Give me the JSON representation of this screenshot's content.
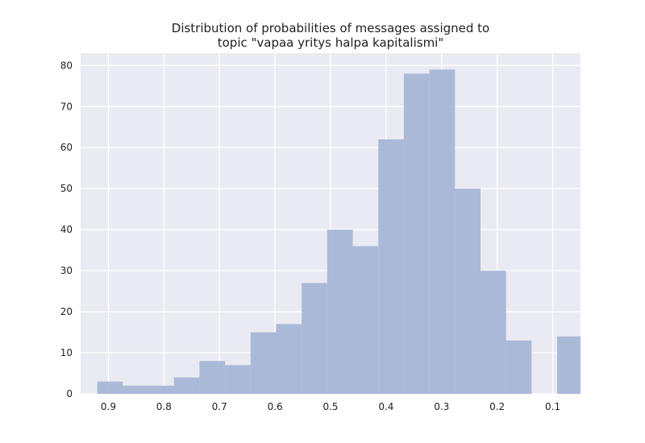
{
  "chart_data": {
    "type": "bar",
    "title_lines": [
      "Distribution of probabilities of messages assigned to",
      "topic \"vapaa yritys halpa kapitalismi\""
    ],
    "xlabel": "",
    "ylabel": "",
    "x_axis_reversed": true,
    "xlim": [
      0.95,
      0.05
    ],
    "ylim": [
      0,
      83
    ],
    "x_ticks": [
      0.9,
      0.8,
      0.7,
      0.6,
      0.5,
      0.4,
      0.3,
      0.2,
      0.1
    ],
    "x_tick_labels": [
      "0.9",
      "0.8",
      "0.7",
      "0.6",
      "0.5",
      "0.4",
      "0.3",
      "0.2",
      "0.1"
    ],
    "y_ticks": [
      0,
      10,
      20,
      30,
      40,
      50,
      60,
      70,
      80
    ],
    "y_tick_labels": [
      "0",
      "10",
      "20",
      "30",
      "40",
      "50",
      "60",
      "70",
      "80"
    ],
    "grid": true,
    "bar_color": "#a7b6d6",
    "background_color": "#eaeaf2",
    "grid_color": "#ffffff",
    "bins": [
      {
        "x_start": 0.92,
        "x_end": 0.874,
        "count": 3
      },
      {
        "x_start": 0.874,
        "x_end": 0.828,
        "count": 2
      },
      {
        "x_start": 0.828,
        "x_end": 0.782,
        "count": 2
      },
      {
        "x_start": 0.782,
        "x_end": 0.736,
        "count": 4
      },
      {
        "x_start": 0.736,
        "x_end": 0.69,
        "count": 8
      },
      {
        "x_start": 0.69,
        "x_end": 0.644,
        "count": 7
      },
      {
        "x_start": 0.644,
        "x_end": 0.598,
        "count": 15
      },
      {
        "x_start": 0.598,
        "x_end": 0.552,
        "count": 17
      },
      {
        "x_start": 0.552,
        "x_end": 0.506,
        "count": 27
      },
      {
        "x_start": 0.506,
        "x_end": 0.46,
        "count": 40
      },
      {
        "x_start": 0.46,
        "x_end": 0.414,
        "count": 36
      },
      {
        "x_start": 0.414,
        "x_end": 0.368,
        "count": 62
      },
      {
        "x_start": 0.368,
        "x_end": 0.322,
        "count": 78
      },
      {
        "x_start": 0.322,
        "x_end": 0.276,
        "count": 79
      },
      {
        "x_start": 0.276,
        "x_end": 0.23,
        "count": 50
      },
      {
        "x_start": 0.23,
        "x_end": 0.184,
        "count": 30
      },
      {
        "x_start": 0.184,
        "x_end": 0.138,
        "count": 13
      },
      {
        "x_start": 0.138,
        "x_end": 0.092,
        "count": 0
      },
      {
        "x_start": 0.092,
        "x_end": 0.05,
        "count": 14
      }
    ]
  }
}
